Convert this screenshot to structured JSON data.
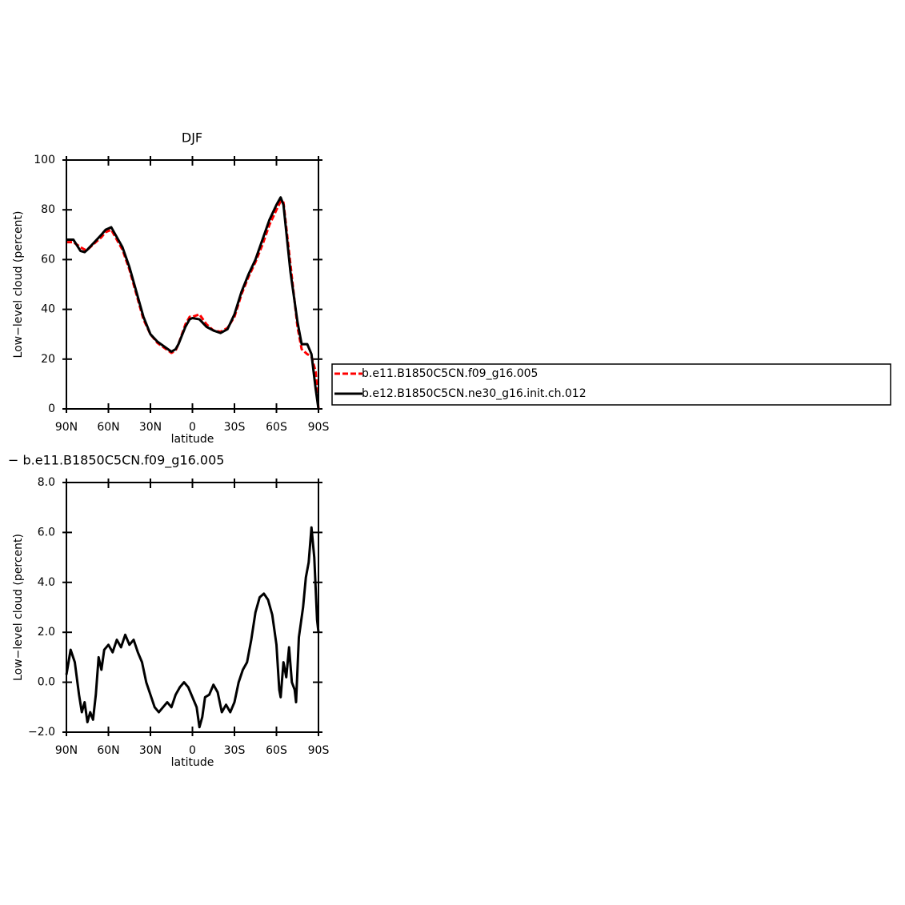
{
  "chart_data": [
    {
      "type": "line",
      "title": "DJF",
      "xlabel": "latitude",
      "ylabel": "Low−level cloud (percent)",
      "xlim": [
        90,
        -90
      ],
      "ylim": [
        0,
        100
      ],
      "xticks": [
        {
          "value": 90,
          "label": "90N"
        },
        {
          "value": 60,
          "label": "60N"
        },
        {
          "value": 30,
          "label": "30N"
        },
        0,
        {
          "value": -30,
          "label": "30S"
        },
        {
          "value": -60,
          "label": "60S"
        },
        {
          "value": -90,
          "label": "90S"
        }
      ],
      "yticks": [
        0,
        20,
        40,
        60,
        80,
        100
      ],
      "x": [
        90,
        85,
        80,
        77,
        75,
        70,
        65,
        62,
        58,
        55,
        50,
        45,
        40,
        35,
        30,
        25,
        20,
        15,
        12,
        10,
        5,
        2,
        0,
        -5,
        -10,
        -15,
        -20,
        -25,
        -30,
        -35,
        -40,
        -45,
        -50,
        -55,
        -60,
        -63,
        -65,
        -70,
        -75,
        -78,
        -82,
        -85,
        -88,
        -90
      ],
      "series": [
        {
          "name": "b.e11.B1850C5CN.f09_g16.005",
          "color": "#ff0000",
          "dashed": true,
          "values": [
            67,
            67,
            65,
            64,
            64,
            66.5,
            69,
            71,
            72,
            69,
            64,
            56,
            46,
            36,
            30,
            26.5,
            24.5,
            22.5,
            23.5,
            26,
            34,
            37,
            37,
            38,
            34,
            31.5,
            31,
            32.5,
            37,
            46,
            53,
            59,
            66,
            74,
            80,
            83.5,
            83,
            58,
            33,
            24,
            22,
            21,
            15,
            0
          ]
        },
        {
          "name": "b.e12.B1850C5CN.ne30_g16.init.ch.012",
          "color": "#000000",
          "dashed": false,
          "values": [
            68,
            68,
            63.5,
            63,
            64,
            67,
            70,
            72,
            73,
            70,
            65,
            57,
            47,
            37,
            30,
            27,
            25,
            23,
            24,
            26,
            33,
            36,
            36.5,
            36,
            33,
            31.5,
            30.5,
            32,
            38,
            47,
            54,
            60,
            68,
            76,
            82,
            85,
            82,
            55,
            35,
            26,
            26,
            22,
            8,
            0
          ]
        }
      ]
    },
    {
      "type": "line",
      "title": "− b.e11.B1850C5CN.f09_g16.005",
      "xlabel": "latitude",
      "ylabel": "Low−level cloud (percent)",
      "xlim": [
        90,
        -90
      ],
      "ylim": [
        -2,
        8
      ],
      "xticks": [
        {
          "value": 90,
          "label": "90N"
        },
        {
          "value": 60,
          "label": "60N"
        },
        {
          "value": 30,
          "label": "30N"
        },
        0,
        {
          "value": -30,
          "label": "30S"
        },
        {
          "value": -60,
          "label": "60S"
        },
        {
          "value": -90,
          "label": "90S"
        }
      ],
      "yticks": [
        {
          "value": -2,
          "label": "−2.0"
        },
        {
          "value": 0,
          "label": "0.0"
        },
        {
          "value": 2,
          "label": "2.0"
        },
        {
          "value": 4,
          "label": "4.0"
        },
        {
          "value": 6,
          "label": "6.0"
        },
        {
          "value": 8,
          "label": "8.0"
        }
      ],
      "x": [
        90,
        87,
        84,
        81,
        79,
        77,
        75,
        73,
        71,
        69,
        67,
        65,
        63,
        60,
        57,
        54,
        51,
        48,
        45,
        42,
        39,
        36,
        33,
        30,
        27,
        24,
        21,
        18,
        15,
        12,
        9,
        6,
        3,
        0,
        -3,
        -5,
        -7,
        -9,
        -12,
        -15,
        -18,
        -21,
        -24,
        -27,
        -30,
        -33,
        -36,
        -39,
        -42,
        -45,
        -48,
        -51,
        -54,
        -57,
        -60,
        -62,
        -63,
        -65,
        -67,
        -69,
        -71,
        -73,
        -74,
        -76,
        -79,
        -81,
        -83,
        -85,
        -87,
        -89,
        -90
      ],
      "series": [
        {
          "color": "#000000",
          "dashed": false,
          "values": [
            0.3,
            1.3,
            0.8,
            -0.5,
            -1.2,
            -0.8,
            -1.6,
            -1.2,
            -1.5,
            -0.5,
            1.0,
            0.5,
            1.3,
            1.5,
            1.2,
            1.7,
            1.4,
            1.9,
            1.5,
            1.7,
            1.2,
            0.8,
            0,
            -0.5,
            -1.0,
            -1.2,
            -1.0,
            -0.8,
            -1.0,
            -0.5,
            -0.2,
            0.0,
            -0.2,
            -0.6,
            -1.0,
            -1.8,
            -1.4,
            -0.6,
            -0.5,
            -0.1,
            -0.4,
            -1.2,
            -0.9,
            -1.2,
            -0.8,
            0.0,
            0.5,
            0.8,
            1.7,
            2.8,
            3.4,
            3.55,
            3.3,
            2.7,
            1.5,
            -0.3,
            -0.6,
            0.8,
            0.2,
            1.4,
            0.0,
            -0.3,
            -0.8,
            1.8,
            3.0,
            4.2,
            4.8,
            6.2,
            5.0,
            2.5,
            2.0
          ]
        }
      ]
    }
  ]
}
